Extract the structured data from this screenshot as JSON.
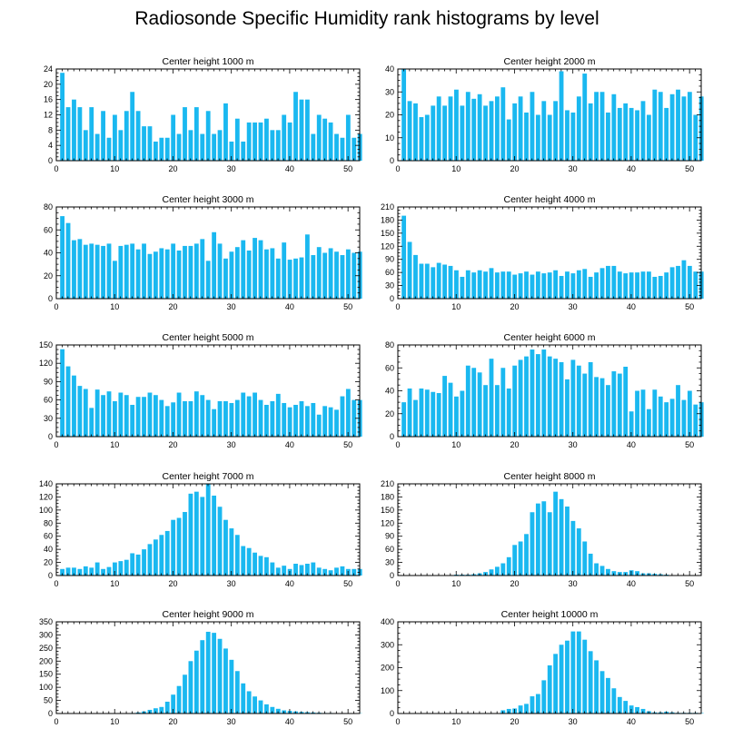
{
  "title": "Radiosonde Specific Humidity rank histograms by level",
  "bar_color": "#1ab8f0",
  "chart_data": [
    {
      "type": "bar",
      "title": "Center height 1000 m",
      "xlim": [
        0,
        52
      ],
      "xticks": [
        0,
        10,
        20,
        30,
        40,
        50
      ],
      "ylim": [
        0,
        24
      ],
      "yticks": [
        0,
        4,
        8,
        12,
        16,
        20,
        24
      ],
      "values": [
        23,
        14,
        16,
        14,
        8,
        14,
        7,
        13,
        6,
        12,
        8,
        13,
        18,
        13,
        9,
        9,
        5,
        6,
        6,
        12,
        7,
        14,
        8,
        14,
        7,
        13,
        7,
        8,
        15,
        5,
        11,
        5,
        10,
        10,
        10,
        11,
        8,
        8,
        12,
        10,
        18,
        16,
        16,
        7,
        12,
        11,
        10,
        7,
        6,
        12,
        6,
        7
      ]
    },
    {
      "type": "bar",
      "title": "Center height 2000 m",
      "xlim": [
        0,
        52
      ],
      "xticks": [
        0,
        10,
        20,
        30,
        40,
        50
      ],
      "ylim": [
        0,
        40
      ],
      "yticks": [
        0,
        10,
        20,
        30,
        40
      ],
      "values": [
        40,
        26,
        25,
        19,
        20,
        24,
        28,
        24,
        28,
        31,
        24,
        30,
        27,
        29,
        24,
        26,
        28,
        32,
        18,
        25,
        28,
        21,
        30,
        20,
        26,
        20,
        26,
        39,
        22,
        21,
        28,
        38,
        25,
        30,
        30,
        21,
        29,
        23,
        25,
        23,
        22,
        26,
        20,
        31,
        30,
        23,
        29,
        31,
        28,
        30,
        20,
        28
      ]
    },
    {
      "type": "bar",
      "title": "Center height 3000 m",
      "xlim": [
        0,
        52
      ],
      "xticks": [
        0,
        10,
        20,
        30,
        40,
        50
      ],
      "ylim": [
        0,
        80
      ],
      "yticks": [
        0,
        20,
        40,
        60,
        80
      ],
      "values": [
        72,
        66,
        51,
        52,
        47,
        48,
        47,
        46,
        48,
        33,
        46,
        47,
        48,
        43,
        48,
        39,
        41,
        44,
        43,
        48,
        42,
        46,
        46,
        48,
        52,
        33,
        58,
        48,
        35,
        41,
        45,
        51,
        42,
        53,
        51,
        43,
        44,
        35,
        49,
        34,
        35,
        36,
        56,
        38,
        45,
        40,
        44,
        41,
        38,
        43,
        40,
        41
      ]
    },
    {
      "type": "bar",
      "title": "Center height 4000 m",
      "xlim": [
        0,
        52
      ],
      "xticks": [
        0,
        10,
        20,
        30,
        40,
        50
      ],
      "ylim": [
        0,
        210
      ],
      "yticks": [
        0,
        30,
        60,
        90,
        120,
        150,
        180,
        210
      ],
      "values": [
        190,
        130,
        100,
        80,
        80,
        72,
        82,
        78,
        75,
        65,
        50,
        65,
        60,
        65,
        62,
        70,
        60,
        62,
        62,
        55,
        58,
        62,
        55,
        62,
        58,
        60,
        65,
        52,
        62,
        58,
        65,
        68,
        50,
        60,
        70,
        75,
        75,
        62,
        58,
        60,
        60,
        62,
        62,
        50,
        52,
        60,
        72,
        75,
        88,
        75,
        62,
        62
      ]
    },
    {
      "type": "bar",
      "title": "Center height 5000 m",
      "xlim": [
        0,
        52
      ],
      "xticks": [
        0,
        10,
        20,
        30,
        40,
        50
      ],
      "ylim": [
        0,
        150
      ],
      "yticks": [
        0,
        30,
        60,
        90,
        120,
        150
      ],
      "values": [
        143,
        115,
        100,
        83,
        78,
        47,
        77,
        68,
        74,
        58,
        72,
        68,
        52,
        65,
        65,
        72,
        68,
        60,
        50,
        56,
        72,
        58,
        58,
        74,
        68,
        60,
        45,
        58,
        58,
        55,
        60,
        72,
        66,
        72,
        60,
        52,
        58,
        70,
        55,
        48,
        52,
        58,
        50,
        55,
        36,
        50,
        48,
        44,
        66,
        78,
        60,
        60
      ]
    },
    {
      "type": "bar",
      "title": "Center height 6000 m",
      "xlim": [
        0,
        52
      ],
      "xticks": [
        0,
        10,
        20,
        30,
        40,
        50
      ],
      "ylim": [
        0,
        80
      ],
      "yticks": [
        0,
        20,
        40,
        60,
        80
      ],
      "values": [
        30,
        42,
        32,
        42,
        41,
        39,
        38,
        53,
        47,
        35,
        40,
        62,
        60,
        56,
        45,
        68,
        45,
        60,
        42,
        62,
        67,
        70,
        76,
        72,
        76,
        70,
        68,
        65,
        50,
        67,
        62,
        55,
        65,
        52,
        51,
        45,
        57,
        55,
        61,
        22,
        40,
        41,
        24,
        41,
        35,
        30,
        33,
        45,
        32,
        40,
        28,
        30
      ]
    },
    {
      "type": "bar",
      "title": "Center height 7000 m",
      "xlim": [
        0,
        52
      ],
      "xticks": [
        0,
        10,
        20,
        30,
        40,
        50
      ],
      "ylim": [
        0,
        140
      ],
      "yticks": [
        0,
        20,
        40,
        60,
        80,
        100,
        120,
        140
      ],
      "values": [
        10,
        12,
        12,
        10,
        14,
        12,
        20,
        10,
        13,
        20,
        22,
        24,
        34,
        32,
        40,
        48,
        55,
        62,
        68,
        85,
        88,
        97,
        125,
        128,
        120,
        140,
        122,
        105,
        85,
        72,
        62,
        45,
        42,
        35,
        30,
        28,
        20,
        12,
        15,
        10,
        18,
        16,
        18,
        20,
        12,
        10,
        8,
        12,
        14,
        10,
        10,
        10
      ]
    },
    {
      "type": "bar",
      "title": "Center height 8000 m",
      "xlim": [
        0,
        52
      ],
      "xticks": [
        0,
        10,
        20,
        30,
        40,
        50
      ],
      "ylim": [
        0,
        210
      ],
      "yticks": [
        0,
        30,
        60,
        90,
        120,
        150,
        180,
        210
      ],
      "values": [
        0,
        0,
        0,
        0,
        0,
        0,
        0,
        1,
        1,
        2,
        2,
        2,
        3,
        5,
        8,
        14,
        20,
        28,
        42,
        70,
        78,
        95,
        145,
        165,
        170,
        145,
        192,
        175,
        158,
        125,
        108,
        78,
        50,
        28,
        22,
        15,
        10,
        8,
        8,
        12,
        10,
        5,
        5,
        4,
        3,
        2,
        1,
        1,
        0,
        0,
        0,
        0
      ]
    },
    {
      "type": "bar",
      "title": "Center height 9000 m",
      "xlim": [
        0,
        52
      ],
      "xticks": [
        0,
        10,
        20,
        30,
        40,
        50
      ],
      "ylim": [
        0,
        350
      ],
      "yticks": [
        0,
        50,
        100,
        150,
        200,
        250,
        300,
        350
      ],
      "values": [
        1,
        1,
        1,
        1,
        1,
        1,
        1,
        1,
        1,
        1,
        1,
        1,
        2,
        4,
        8,
        14,
        20,
        25,
        45,
        72,
        105,
        148,
        200,
        240,
        280,
        312,
        308,
        285,
        248,
        205,
        162,
        115,
        85,
        65,
        50,
        35,
        25,
        18,
        12,
        10,
        8,
        6,
        5,
        4,
        3,
        2,
        2,
        1,
        1,
        1,
        1,
        1
      ]
    },
    {
      "type": "bar",
      "title": "Center height 10000 m",
      "xlim": [
        0,
        52
      ],
      "xticks": [
        0,
        10,
        20,
        30,
        40,
        50
      ],
      "ylim": [
        0,
        400
      ],
      "yticks": [
        0,
        100,
        200,
        300,
        400
      ],
      "values": [
        0,
        0,
        0,
        0,
        0,
        0,
        0,
        0,
        0,
        0,
        0,
        0,
        0,
        0,
        0,
        1,
        2,
        14,
        20,
        22,
        35,
        42,
        75,
        85,
        145,
        210,
        260,
        300,
        318,
        358,
        358,
        322,
        272,
        232,
        185,
        155,
        110,
        72,
        55,
        35,
        28,
        20,
        10,
        5,
        5,
        8,
        5,
        3,
        3,
        3,
        3,
        2
      ]
    }
  ]
}
